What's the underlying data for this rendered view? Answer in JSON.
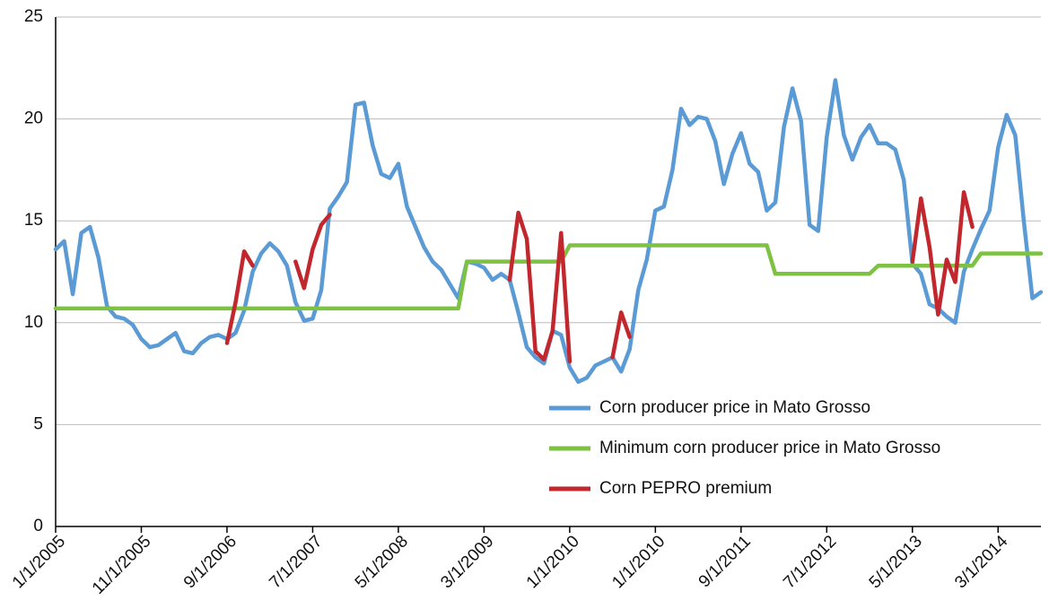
{
  "chart_data": {
    "type": "line",
    "categories": [
      "1/1/2005",
      null,
      null,
      null,
      null,
      null,
      null,
      null,
      null,
      null,
      "11/1/2005",
      null,
      null,
      null,
      null,
      null,
      null,
      null,
      null,
      null,
      "9/1/2006",
      null,
      null,
      null,
      null,
      null,
      null,
      null,
      null,
      null,
      "7/1/2007",
      null,
      null,
      null,
      null,
      null,
      null,
      null,
      null,
      null,
      "5/1/2008",
      null,
      null,
      null,
      null,
      null,
      null,
      null,
      null,
      null,
      "3/1/2009",
      null,
      null,
      null,
      null,
      null,
      null,
      null,
      null,
      null,
      "1/1/2010",
      null,
      null,
      null,
      null,
      null,
      null,
      null,
      null,
      null,
      "1/1/2010",
      null,
      null,
      null,
      null,
      null,
      null,
      null,
      null,
      null,
      "9/1/2011",
      null,
      null,
      null,
      null,
      null,
      null,
      null,
      null,
      null,
      "7/1/2012",
      null,
      null,
      null,
      null,
      null,
      null,
      null,
      null,
      null,
      "5/1/2013",
      null,
      null,
      null,
      null,
      null,
      null,
      null,
      null,
      null,
      "3/1/2014",
      null,
      null,
      null,
      null,
      null
    ],
    "series": [
      {
        "name": "Corn producer price in Mato Grosso",
        "color": "#5b9bd5",
        "values": [
          13.6,
          14.0,
          11.4,
          14.4,
          14.7,
          13.2,
          10.8,
          10.3,
          10.2,
          9.9,
          9.2,
          8.8,
          8.9,
          9.2,
          9.5,
          8.6,
          8.5,
          9.0,
          9.3,
          9.4,
          9.2,
          9.5,
          10.6,
          12.5,
          13.4,
          13.9,
          13.5,
          12.8,
          11.0,
          10.1,
          10.2,
          11.6,
          15.6,
          16.2,
          16.9,
          20.7,
          20.8,
          18.7,
          17.3,
          17.1,
          17.8,
          15.7,
          14.7,
          13.7,
          13.0,
          12.6,
          11.9,
          11.2,
          13.0,
          12.9,
          12.7,
          12.1,
          12.4,
          12.1,
          10.5,
          8.8,
          8.3,
          8.0,
          9.6,
          9.4,
          7.8,
          7.1,
          7.3,
          7.9,
          8.1,
          8.3,
          7.6,
          8.7,
          11.6,
          13.1,
          15.5,
          15.7,
          17.5,
          20.5,
          19.7,
          20.1,
          20.0,
          18.9,
          16.8,
          18.3,
          19.3,
          17.8,
          17.4,
          15.5,
          15.9,
          19.6,
          21.5,
          19.9,
          14.8,
          14.5,
          19.1,
          21.9,
          19.2,
          18.0,
          19.1,
          19.7,
          18.8,
          18.8,
          18.5,
          17.0,
          12.9,
          12.4,
          10.9,
          10.7,
          10.3,
          10.0,
          12.5,
          13.6,
          14.6,
          15.5,
          18.6,
          20.2,
          19.2,
          15.0,
          11.2,
          11.5
        ]
      },
      {
        "name": "Minimum corn producer price in Mato Grosso",
        "color": "#7dc242",
        "values": [
          10.7,
          10.7,
          10.7,
          10.7,
          10.7,
          10.7,
          10.7,
          10.7,
          10.7,
          10.7,
          10.7,
          10.7,
          10.7,
          10.7,
          10.7,
          10.7,
          10.7,
          10.7,
          10.7,
          10.7,
          10.7,
          10.7,
          10.7,
          10.7,
          10.7,
          10.7,
          10.7,
          10.7,
          10.7,
          10.7,
          10.7,
          10.7,
          10.7,
          10.7,
          10.7,
          10.7,
          10.7,
          10.7,
          10.7,
          10.7,
          10.7,
          10.7,
          10.7,
          10.7,
          10.7,
          10.7,
          10.7,
          10.7,
          13.0,
          13.0,
          13.0,
          13.0,
          13.0,
          13.0,
          13.0,
          13.0,
          13.0,
          13.0,
          13.0,
          13.0,
          13.8,
          13.8,
          13.8,
          13.8,
          13.8,
          13.8,
          13.8,
          13.8,
          13.8,
          13.8,
          13.8,
          13.8,
          13.8,
          13.8,
          13.8,
          13.8,
          13.8,
          13.8,
          13.8,
          13.8,
          13.8,
          13.8,
          13.8,
          13.8,
          12.4,
          12.4,
          12.4,
          12.4,
          12.4,
          12.4,
          12.4,
          12.4,
          12.4,
          12.4,
          12.4,
          12.4,
          12.8,
          12.8,
          12.8,
          12.8,
          12.8,
          12.8,
          12.8,
          12.8,
          12.8,
          12.8,
          12.8,
          12.8,
          13.4,
          13.4,
          13.4,
          13.4,
          13.4,
          13.4,
          13.4,
          13.4
        ]
      },
      {
        "name": "Corn PEPRO premium",
        "color": "#c1272d",
        "values": [
          null,
          null,
          null,
          null,
          null,
          null,
          null,
          null,
          null,
          null,
          null,
          null,
          null,
          null,
          null,
          null,
          null,
          null,
          null,
          null,
          9.0,
          11.0,
          13.5,
          12.8,
          null,
          null,
          null,
          null,
          13.0,
          11.7,
          13.6,
          14.8,
          15.3,
          null,
          null,
          null,
          null,
          null,
          null,
          null,
          null,
          null,
          null,
          null,
          null,
          null,
          null,
          null,
          null,
          null,
          null,
          null,
          null,
          12.1,
          15.4,
          14.1,
          8.6,
          8.2,
          9.6,
          14.4,
          8.1,
          null,
          null,
          null,
          null,
          8.3,
          10.5,
          9.3,
          null,
          null,
          null,
          null,
          null,
          null,
          null,
          null,
          null,
          null,
          null,
          null,
          null,
          null,
          null,
          null,
          null,
          null,
          null,
          null,
          null,
          null,
          null,
          null,
          null,
          null,
          null,
          null,
          null,
          null,
          null,
          null,
          13.0,
          16.1,
          13.7,
          10.4,
          13.1,
          12.0,
          16.4,
          14.7,
          null,
          null,
          null,
          null,
          null,
          null,
          null,
          null
        ]
      }
    ],
    "ylim": [
      0,
      25
    ],
    "yticks": [
      0,
      5,
      10,
      15,
      20,
      25
    ],
    "grid": true
  }
}
